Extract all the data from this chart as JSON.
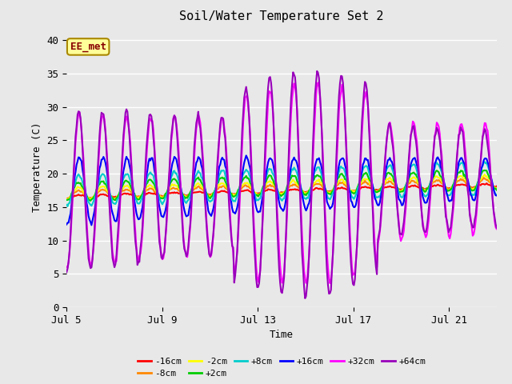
{
  "title": "Soil/Water Temperature Set 2",
  "xlabel": "Time",
  "ylabel": "Temperature (C)",
  "ylim": [
    0,
    42
  ],
  "yticks": [
    0,
    5,
    10,
    15,
    20,
    25,
    30,
    35,
    40
  ],
  "x_start_day": 5,
  "n_days": 18,
  "xtick_days": [
    5,
    9,
    13,
    17,
    21
  ],
  "xtick_labels": [
    "Jul 5",
    "Jul 9",
    "Jul 13",
    "Jul 17",
    "Jul 21"
  ],
  "legend_labels": [
    "-16cm",
    "-8cm",
    "-2cm",
    "+2cm",
    "+8cm",
    "+16cm",
    "+32cm",
    "+64cm"
  ],
  "legend_colors": [
    "#ff0000",
    "#ff8800",
    "#ffff00",
    "#00cc00",
    "#00cccc",
    "#0000ff",
    "#ff00ff",
    "#9900bb"
  ],
  "annotation_text": "EE_met",
  "annotation_bg": "#ffff99",
  "annotation_border": "#aa8800",
  "annotation_text_color": "#880000",
  "fig_bg_color": "#e8e8e8",
  "plot_bg_color": "#e8e8e8"
}
